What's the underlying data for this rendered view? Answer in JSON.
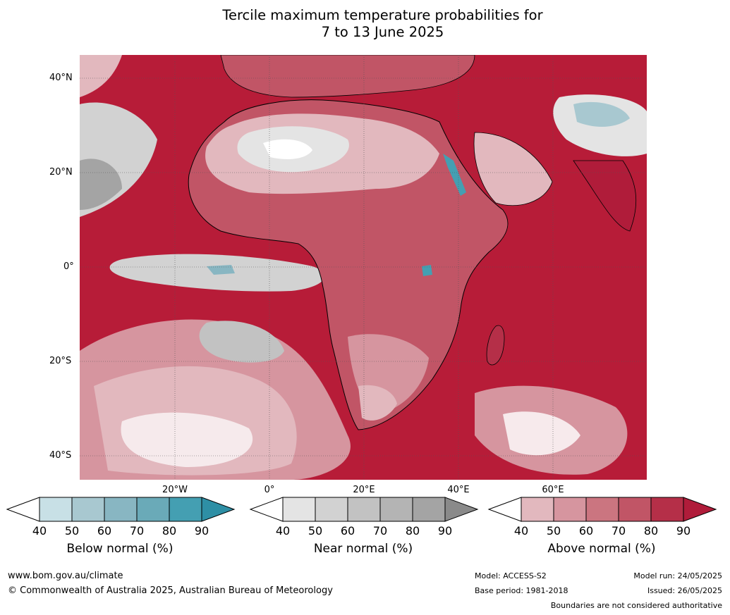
{
  "title_line1": "Tercile maximum temperature probabilities for",
  "title_line2": "7 to 13 June 2025",
  "lat_labels": [
    "40°N",
    "20°N",
    "0°",
    "20°S",
    "40°S"
  ],
  "lon_labels": [
    "20°W",
    "0°",
    "20°E",
    "40°E",
    "60°E"
  ],
  "colorbars": [
    {
      "label": "Below normal (%)",
      "ticks": [
        "40",
        "50",
        "60",
        "70",
        "80",
        "90"
      ],
      "colors": [
        "#ffffff",
        "#c8e0e6",
        "#a8c8d0",
        "#88b6c2",
        "#6aaab8",
        "#449fb2",
        "#2e8fa5"
      ]
    },
    {
      "label": "Near normal (%)",
      "ticks": [
        "40",
        "50",
        "60",
        "70",
        "80",
        "90"
      ],
      "colors": [
        "#ffffff",
        "#e4e4e4",
        "#d2d2d2",
        "#c2c2c2",
        "#b4b4b4",
        "#a4a4a4",
        "#8a8a8a"
      ]
    },
    {
      "label": "Above normal (%)",
      "ticks": [
        "40",
        "50",
        "60",
        "70",
        "80",
        "90"
      ],
      "colors": [
        "#ffffff",
        "#e2b8be",
        "#d6959f",
        "#cb7580",
        "#c15566",
        "#b52f48",
        "#b01c3a"
      ]
    }
  ],
  "footer": {
    "url": "www.bom.gov.au/climate",
    "copyright": "© Commonwealth of Australia 2025, Australian Bureau of Meteorology",
    "model": "Model: ACCESS-S2",
    "base_period": "Base period: 1981-2018",
    "model_run": "Model run: 24/05/2025",
    "issued": "Issued: 26/05/2025",
    "disclaimer": "Boundaries are not considered authoritative"
  }
}
